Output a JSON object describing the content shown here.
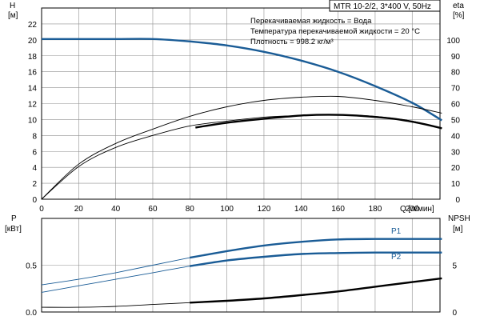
{
  "chart_data": [
    {
      "type": "line",
      "title": "MTR 10-2/2, 3*400 V, 50Hz",
      "annotations": [
        "Перекачиваемая жидкость = Вода",
        "Температура перекачиваемой жидкости = 20 °C",
        "Плотность = 998.2 кг/м³"
      ],
      "xlabel": "Q [л/мин]",
      "x_ticks": [
        0,
        20,
        40,
        60,
        80,
        100,
        120,
        140,
        160,
        180,
        200
      ],
      "xlim": [
        0,
        215
      ],
      "ylabel_left": {
        "name": "H",
        "unit": "[м]"
      },
      "ylim_left": [
        0,
        24
      ],
      "y_ticks_left": [
        0,
        2,
        4,
        6,
        8,
        10,
        12,
        14,
        16,
        18,
        20,
        22
      ],
      "ylabel_right": {
        "name": "eta",
        "unit": "[%]"
      },
      "ylim_right": [
        0,
        120
      ],
      "y_ticks_right": [
        0,
        10,
        20,
        30,
        40,
        50,
        60,
        70,
        80,
        90,
        100
      ],
      "grid": true,
      "series": [
        {
          "axis": "left",
          "color": "#1a5c96",
          "style": "thick",
          "x": [
            0,
            20,
            40,
            60,
            80,
            100,
            120,
            140,
            160,
            180,
            200,
            216
          ],
          "y": [
            20.1,
            20.1,
            20.1,
            20.1,
            19.8,
            19.3,
            18.5,
            17.4,
            16.0,
            14.2,
            12.1,
            9.9
          ]
        },
        {
          "axis": "right",
          "color": "#000000",
          "style": "thin",
          "x": [
            0,
            20,
            40,
            60,
            80,
            100,
            120,
            140,
            160,
            180,
            200,
            216
          ],
          "y": [
            0,
            22,
            35,
            44,
            52,
            58,
            62,
            64,
            64.5,
            62,
            58,
            54
          ]
        },
        {
          "axis": "left",
          "color": "#000000",
          "style": "thin",
          "x": [
            0,
            20,
            40,
            60,
            80,
            100,
            120,
            140,
            160,
            180,
            200,
            216
          ],
          "y": [
            0,
            4.1,
            6.5,
            8.0,
            9.2,
            9.8,
            10.3,
            10.5,
            10.6,
            10.4,
            9.8,
            8.9
          ]
        },
        {
          "axis": "left",
          "color": "#000000",
          "style": "thick",
          "x": [
            83,
            100,
            120,
            140,
            155,
            170,
            190,
            205,
            216
          ],
          "y": [
            9.0,
            9.6,
            10.1,
            10.5,
            10.6,
            10.5,
            10.1,
            9.5,
            8.9
          ]
        }
      ]
    },
    {
      "type": "line",
      "xlabel": "",
      "ylabel_left": {
        "name": "P",
        "unit": "[кВт]"
      },
      "ylim_left": [
        0,
        1
      ],
      "y_ticks_left": [
        "0.0",
        "0.5"
      ],
      "ylabel_right": {
        "name": "NPSH",
        "unit": "[м]"
      },
      "ylim_right": [
        0,
        10
      ],
      "y_ticks_right": [
        0,
        5
      ],
      "grid": true,
      "series": [
        {
          "name": "P1",
          "axis": "left",
          "color": "#1a5c96",
          "x": [
            0,
            20,
            40,
            60,
            80,
            100,
            120,
            140,
            160,
            180,
            200,
            216
          ],
          "y": [
            0.29,
            0.35,
            0.42,
            0.5,
            0.58,
            0.65,
            0.71,
            0.75,
            0.775,
            0.78,
            0.78,
            0.78
          ]
        },
        {
          "name": "P2",
          "axis": "left",
          "color": "#1a5c96",
          "x": [
            0,
            20,
            40,
            60,
            80,
            100,
            120,
            140,
            160,
            180,
            200,
            216
          ],
          "y": [
            0.21,
            0.28,
            0.35,
            0.42,
            0.49,
            0.55,
            0.59,
            0.62,
            0.63,
            0.635,
            0.635,
            0.635
          ]
        },
        {
          "axis": "right",
          "color": "#000000",
          "x": [
            0,
            20,
            40,
            60,
            80,
            100,
            120,
            140,
            160,
            180,
            200,
            216
          ],
          "y": [
            0.5,
            0.5,
            0.6,
            0.8,
            1.0,
            1.2,
            1.45,
            1.8,
            2.2,
            2.7,
            3.2,
            3.6
          ]
        }
      ]
    }
  ]
}
